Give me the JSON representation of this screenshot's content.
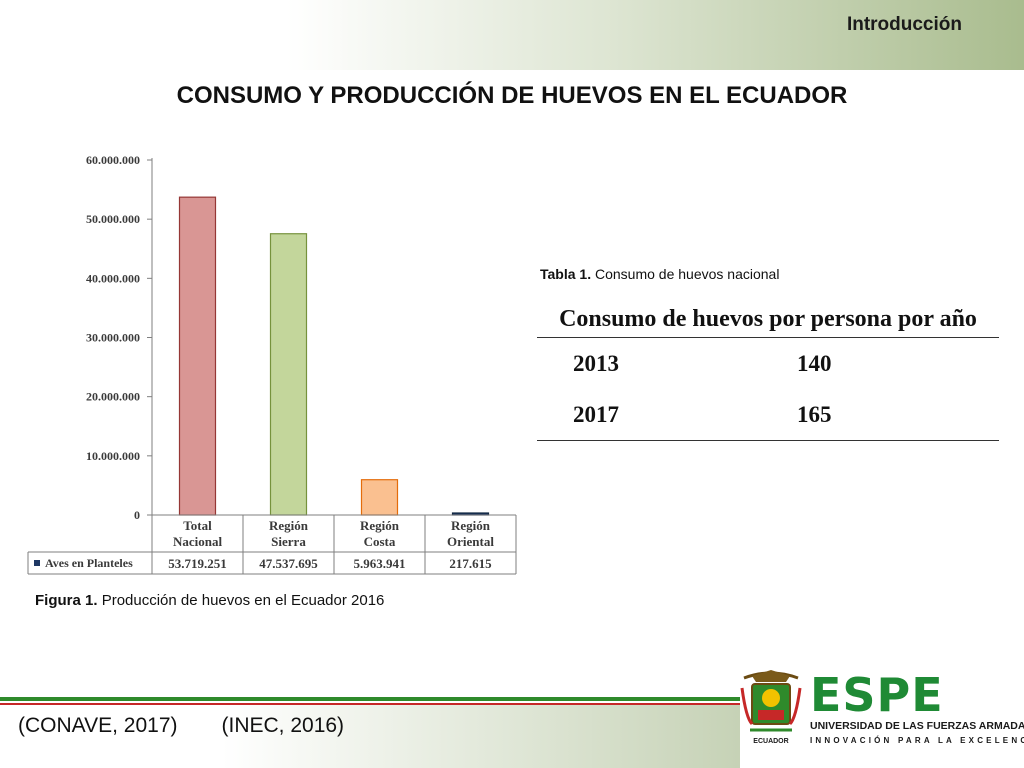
{
  "header": {
    "section": "Introducción",
    "title": "CONSUMO Y PRODUCCIÓN DE HUEVOS EN EL ECUADOR"
  },
  "chart_data": {
    "type": "bar",
    "categories": [
      [
        "Total",
        "Nacional"
      ],
      [
        "Región",
        "Sierra"
      ],
      [
        "Región",
        "Costa"
      ],
      [
        "Región",
        "Oriental"
      ]
    ],
    "series": [
      {
        "name": "Aves en Planteles",
        "values": [
          53719251,
          47537695,
          5963941,
          217615
        ]
      }
    ],
    "data_labels": [
      "53.719.251",
      "47.537.695",
      "5.963.941",
      "217.615"
    ],
    "ylim": [
      0,
      60000000
    ],
    "yticks": [
      0,
      10000000,
      20000000,
      30000000,
      40000000,
      50000000,
      60000000
    ],
    "ytick_labels": [
      "0",
      "10.000.000",
      "20.000.000",
      "30.000.000",
      "40.000.000",
      "50.000.000",
      "60.000.000"
    ],
    "bar_colors": [
      "#d99694",
      "#c3d69b",
      "#fac090",
      "#1f3864"
    ],
    "bar_borders": [
      "#953735",
      "#76923c",
      "#e46c0a",
      "#0f243e"
    ],
    "legend_color": "#1f3864",
    "legend_placement": "data-table"
  },
  "figure": {
    "label": "Figura 1.",
    "caption": "Producción de huevos en el Ecuador 2016"
  },
  "table": {
    "label": "Tabla 1.",
    "caption": "Consumo de huevos nacional",
    "header": "Consumo de huevos por persona por año",
    "rows": [
      {
        "year": "2013",
        "value": "140"
      },
      {
        "year": "2017",
        "value": "165"
      }
    ]
  },
  "citations": [
    "(CONAVE, 2017)",
    "(INEC, 2016)"
  ],
  "logo": {
    "name": "ESPE",
    "subtitle": "UNIVERSIDAD DE LAS FUERZAS ARMADAS",
    "tagline": "INNOVACIÓN PARA LA EXCELENCIA",
    "crest_text": "ECUADOR",
    "color": "#1f8a35"
  }
}
